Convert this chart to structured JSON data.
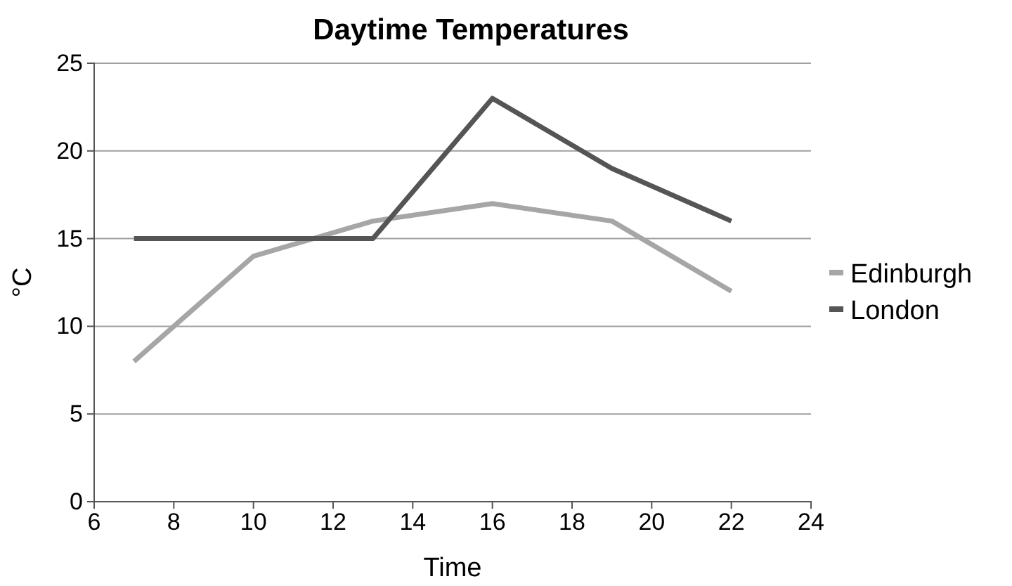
{
  "chart_data": {
    "type": "line",
    "title": "Daytime Temperatures",
    "xlabel": "Time",
    "ylabel": "°C",
    "x": [
      7,
      10,
      13,
      16,
      19,
      22
    ],
    "series": [
      {
        "name": "Edinburgh",
        "color": "#a6a6a6",
        "values": [
          8,
          14,
          16,
          17,
          16,
          12
        ]
      },
      {
        "name": "London",
        "color": "#555555",
        "values": [
          15,
          15,
          15,
          23,
          19,
          16
        ]
      }
    ],
    "xlim": [
      6,
      24
    ],
    "xticks": [
      6,
      8,
      10,
      12,
      14,
      16,
      18,
      20,
      22,
      24
    ],
    "ylim": [
      0,
      25
    ],
    "yticks": [
      0,
      5,
      10,
      15,
      20,
      25
    ],
    "grid": "y",
    "legend": "right",
    "marker": "none",
    "line_style": "solid"
  }
}
